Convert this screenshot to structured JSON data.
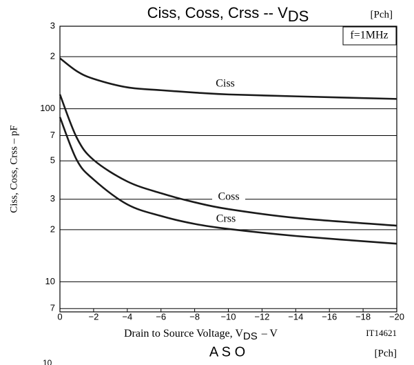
{
  "chart_data": {
    "type": "line",
    "title": "Ciss, Coss, Crss -- V",
    "title_subscript": "DS",
    "tag": "[Pch]",
    "condition": "f=1MHz",
    "y_label": "Ciss, Coss, Crss – pF",
    "x_label": "Drain to Source Voltage, V",
    "x_label_subscript": "DS",
    "x_label_unit": "– V",
    "figure_id": "IT14621",
    "next_title": "A S O",
    "next_tag": "[Pch]",
    "next_tick": "10",
    "log_y": true,
    "grid": true,
    "x": [
      0,
      -1,
      -2,
      -4,
      -6,
      -8,
      -10,
      -14,
      -20
    ],
    "series": [
      {
        "name": "Ciss",
        "color": "#1a1a1a",
        "values": [
          196,
          165,
          149,
          133,
          128,
          124,
          121,
          118,
          114
        ]
      },
      {
        "name": "Coss",
        "color": "#1a1a1a",
        "values": [
          121,
          68,
          50.6,
          38,
          32.5,
          28.8,
          26.3,
          23.4,
          21.1
        ]
      },
      {
        "name": "Crss",
        "color": "#1a1a1a",
        "values": [
          89.5,
          50.6,
          39,
          28,
          24,
          21.6,
          20.2,
          18.4,
          16.6
        ]
      }
    ],
    "xlim": [
      0,
      -20
    ],
    "xticks": [
      0,
      {
        "value": -2,
        "label": "−2"
      },
      {
        "value": -4,
        "label": "−4"
      },
      {
        "value": -6,
        "label": "−6"
      },
      {
        "value": -8,
        "label": "−8"
      },
      {
        "value": -10,
        "label": "−10"
      },
      {
        "value": -12,
        "label": "−12"
      },
      {
        "value": -14,
        "label": "−14"
      },
      {
        "value": -16,
        "label": "−16"
      },
      {
        "value": -18,
        "label": "−18"
      },
      {
        "value": -20,
        "label": "−20"
      }
    ],
    "ylim": [
      6.7,
      300
    ],
    "yticks": [
      {
        "value": 300,
        "label": "3"
      },
      {
        "value": 200,
        "label": "2"
      },
      100,
      {
        "value": 70,
        "label": "7"
      },
      {
        "value": 50,
        "label": "5"
      },
      {
        "value": 30,
        "label": "3"
      },
      {
        "value": 20,
        "label": "2"
      },
      10,
      {
        "value": 7,
        "label": "7"
      }
    ]
  }
}
